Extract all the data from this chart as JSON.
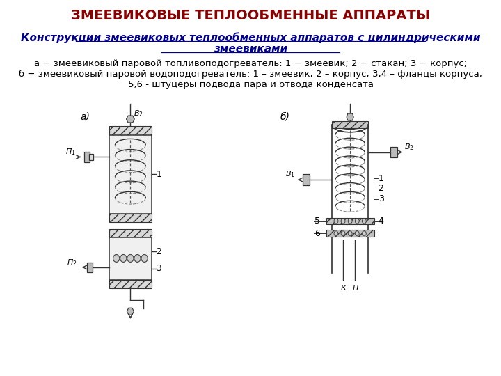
{
  "title": "ЗМЕЕВИКОВЫЕ ТЕПЛООБМЕННЫЕ АППАРАТЫ",
  "title_color": "#8B0000",
  "title_fontsize": 14,
  "subtitle_line1": "Конструкции змеевиковых теплообменных аппаратов с цилиндрическими",
  "subtitle_line2": "змеевиками",
  "subtitle_color": "#00008B",
  "subtitle_fontsize": 11,
  "caption_line1": "а − змеевиковый паровой топливоподогреватель: 1 − змеевик; 2 − стакан; 3 − корпус;",
  "caption_line2": "б − змеевиковый паровой водоподогреватель: 1 – змеевик; 2 – корпус; 3,4 – фланцы корпуса;",
  "caption_line3": "5,6 - штуцеры подвода пара и отвода конденсата",
  "caption_color": "#000000",
  "caption_fontsize": 9.5,
  "background_color": "#ffffff",
  "fig_width": 7.2,
  "fig_height": 5.4,
  "dpi": 100
}
